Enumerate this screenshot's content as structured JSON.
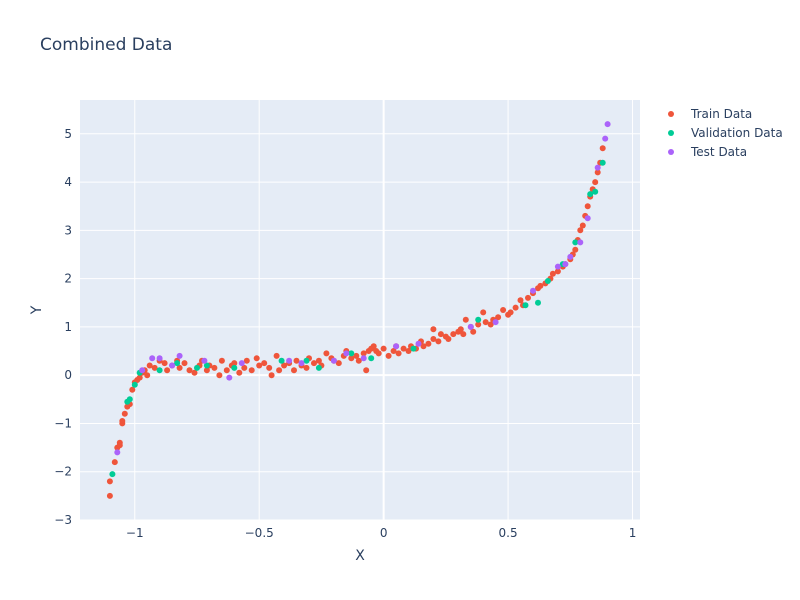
{
  "chart_data": {
    "type": "scatter",
    "title": "Combined Data",
    "xlabel": "X",
    "ylabel": "Y",
    "xlim": [
      -1.22,
      1.03
    ],
    "ylim": [
      -3.0,
      5.7
    ],
    "x_ticks": [
      -1,
      -0.5,
      0,
      0.5,
      1
    ],
    "x_tick_labels": [
      "−1",
      "−0.5",
      "0",
      "0.5",
      "1"
    ],
    "y_ticks": [
      -3,
      -2,
      -1,
      0,
      1,
      2,
      3,
      4,
      5
    ],
    "y_tick_labels": [
      "−3",
      "−2",
      "−1",
      "0",
      "1",
      "2",
      "3",
      "4",
      "5"
    ],
    "grid": true,
    "legend_position": "top-right",
    "background_color": "#e5ecf6",
    "series": [
      {
        "name": "Train Data",
        "color": "#ef553b",
        "points": [
          [
            -1.1,
            -2.5
          ],
          [
            -1.1,
            -2.2
          ],
          [
            -1.08,
            -1.8
          ],
          [
            -1.07,
            -1.5
          ],
          [
            -1.06,
            -1.4
          ],
          [
            -1.06,
            -1.45
          ],
          [
            -1.05,
            -1.0
          ],
          [
            -1.05,
            -0.95
          ],
          [
            -1.04,
            -0.8
          ],
          [
            -1.03,
            -0.65
          ],
          [
            -1.02,
            -0.6
          ],
          [
            -1.01,
            -0.3
          ],
          [
            -1.0,
            -0.15
          ],
          [
            -0.99,
            -0.1
          ],
          [
            -0.98,
            -0.05
          ],
          [
            -0.97,
            0.05
          ],
          [
            -0.96,
            0.1
          ],
          [
            -0.95,
            0.0
          ],
          [
            -0.94,
            0.2
          ],
          [
            -0.92,
            0.15
          ],
          [
            -0.9,
            0.3
          ],
          [
            -0.88,
            0.25
          ],
          [
            -0.87,
            0.1
          ],
          [
            -0.85,
            0.2
          ],
          [
            -0.83,
            0.3
          ],
          [
            -0.82,
            0.15
          ],
          [
            -0.8,
            0.25
          ],
          [
            -0.78,
            0.1
          ],
          [
            -0.76,
            0.05
          ],
          [
            -0.74,
            0.2
          ],
          [
            -0.73,
            0.3
          ],
          [
            -0.71,
            0.1
          ],
          [
            -0.7,
            0.2
          ],
          [
            -0.68,
            0.15
          ],
          [
            -0.66,
            0.0
          ],
          [
            -0.65,
            0.3
          ],
          [
            -0.63,
            0.1
          ],
          [
            -0.61,
            0.2
          ],
          [
            -0.6,
            0.25
          ],
          [
            -0.58,
            0.05
          ],
          [
            -0.56,
            0.15
          ],
          [
            -0.55,
            0.3
          ],
          [
            -0.53,
            0.1
          ],
          [
            -0.51,
            0.35
          ],
          [
            -0.5,
            0.2
          ],
          [
            -0.48,
            0.25
          ],
          [
            -0.46,
            0.15
          ],
          [
            -0.45,
            0.0
          ],
          [
            -0.43,
            0.4
          ],
          [
            -0.42,
            0.1
          ],
          [
            -0.4,
            0.2
          ],
          [
            -0.38,
            0.25
          ],
          [
            -0.36,
            0.1
          ],
          [
            -0.35,
            0.3
          ],
          [
            -0.33,
            0.2
          ],
          [
            -0.31,
            0.15
          ],
          [
            -0.3,
            0.35
          ],
          [
            -0.28,
            0.25
          ],
          [
            -0.26,
            0.3
          ],
          [
            -0.25,
            0.2
          ],
          [
            -0.23,
            0.45
          ],
          [
            -0.21,
            0.35
          ],
          [
            -0.2,
            0.3
          ],
          [
            -0.18,
            0.25
          ],
          [
            -0.16,
            0.4
          ],
          [
            -0.15,
            0.5
          ],
          [
            -0.13,
            0.35
          ],
          [
            -0.11,
            0.4
          ],
          [
            -0.1,
            0.3
          ],
          [
            -0.08,
            0.45
          ],
          [
            -0.07,
            0.1
          ],
          [
            -0.06,
            0.5
          ],
          [
            -0.05,
            0.55
          ],
          [
            -0.04,
            0.6
          ],
          [
            -0.03,
            0.5
          ],
          [
            -0.02,
            0.45
          ],
          [
            0.0,
            0.55
          ],
          [
            0.02,
            0.4
          ],
          [
            0.04,
            0.5
          ],
          [
            0.05,
            0.6
          ],
          [
            0.06,
            0.45
          ],
          [
            0.08,
            0.55
          ],
          [
            0.1,
            0.5
          ],
          [
            0.11,
            0.6
          ],
          [
            0.13,
            0.55
          ],
          [
            0.15,
            0.7
          ],
          [
            0.16,
            0.6
          ],
          [
            0.18,
            0.65
          ],
          [
            0.2,
            0.75
          ],
          [
            0.2,
            0.95
          ],
          [
            0.22,
            0.7
          ],
          [
            0.23,
            0.85
          ],
          [
            0.25,
            0.8
          ],
          [
            0.26,
            0.75
          ],
          [
            0.28,
            0.85
          ],
          [
            0.3,
            0.9
          ],
          [
            0.31,
            0.95
          ],
          [
            0.32,
            0.85
          ],
          [
            0.33,
            1.15
          ],
          [
            0.35,
            1.0
          ],
          [
            0.36,
            0.9
          ],
          [
            0.38,
            1.05
          ],
          [
            0.4,
            1.3
          ],
          [
            0.41,
            1.1
          ],
          [
            0.43,
            1.05
          ],
          [
            0.44,
            1.15
          ],
          [
            0.46,
            1.2
          ],
          [
            0.48,
            1.35
          ],
          [
            0.5,
            1.25
          ],
          [
            0.51,
            1.3
          ],
          [
            0.53,
            1.4
          ],
          [
            0.55,
            1.55
          ],
          [
            0.56,
            1.45
          ],
          [
            0.58,
            1.6
          ],
          [
            0.6,
            1.7
          ],
          [
            0.62,
            1.8
          ],
          [
            0.63,
            1.85
          ],
          [
            0.65,
            1.9
          ],
          [
            0.67,
            2.0
          ],
          [
            0.68,
            2.1
          ],
          [
            0.7,
            2.15
          ],
          [
            0.72,
            2.25
          ],
          [
            0.73,
            2.3
          ],
          [
            0.75,
            2.4
          ],
          [
            0.76,
            2.5
          ],
          [
            0.77,
            2.6
          ],
          [
            0.78,
            2.8
          ],
          [
            0.79,
            3.0
          ],
          [
            0.8,
            3.1
          ],
          [
            0.81,
            3.3
          ],
          [
            0.82,
            3.5
          ],
          [
            0.83,
            3.7
          ],
          [
            0.84,
            3.85
          ],
          [
            0.85,
            4.0
          ],
          [
            0.86,
            4.2
          ],
          [
            0.87,
            4.4
          ],
          [
            0.88,
            4.7
          ]
        ]
      },
      {
        "name": "Validation Data",
        "color": "#00cc96",
        "points": [
          [
            -1.09,
            -2.05
          ],
          [
            -1.03,
            -0.55
          ],
          [
            -1.02,
            -0.5
          ],
          [
            -1.0,
            -0.2
          ],
          [
            -0.98,
            0.05
          ],
          [
            -0.9,
            0.1
          ],
          [
            -0.83,
            0.25
          ],
          [
            -0.75,
            0.15
          ],
          [
            -0.71,
            0.2
          ],
          [
            -0.6,
            0.15
          ],
          [
            -0.41,
            0.3
          ],
          [
            -0.31,
            0.3
          ],
          [
            -0.26,
            0.15
          ],
          [
            -0.13,
            0.45
          ],
          [
            -0.05,
            0.35
          ],
          [
            0.12,
            0.55
          ],
          [
            0.38,
            1.15
          ],
          [
            0.57,
            1.45
          ],
          [
            0.62,
            1.5
          ],
          [
            0.66,
            1.95
          ],
          [
            0.72,
            2.3
          ],
          [
            0.77,
            2.75
          ],
          [
            0.83,
            3.75
          ],
          [
            0.85,
            3.8
          ],
          [
            0.88,
            4.4
          ]
        ]
      },
      {
        "name": "Test Data",
        "color": "#ab63fa",
        "points": [
          [
            -1.07,
            -1.6
          ],
          [
            -0.97,
            0.1
          ],
          [
            -0.93,
            0.35
          ],
          [
            -0.9,
            0.35
          ],
          [
            -0.85,
            0.2
          ],
          [
            -0.82,
            0.4
          ],
          [
            -0.72,
            0.3
          ],
          [
            -0.62,
            -0.05
          ],
          [
            -0.57,
            0.25
          ],
          [
            -0.38,
            0.3
          ],
          [
            -0.33,
            0.25
          ],
          [
            -0.2,
            0.3
          ],
          [
            -0.15,
            0.45
          ],
          [
            -0.08,
            0.35
          ],
          [
            0.05,
            0.6
          ],
          [
            0.14,
            0.65
          ],
          [
            0.35,
            1.0
          ],
          [
            0.45,
            1.1
          ],
          [
            0.6,
            1.75
          ],
          [
            0.7,
            2.25
          ],
          [
            0.73,
            2.3
          ],
          [
            0.75,
            2.45
          ],
          [
            0.79,
            2.75
          ],
          [
            0.82,
            3.25
          ],
          [
            0.86,
            4.3
          ],
          [
            0.89,
            4.9
          ],
          [
            0.9,
            5.2
          ]
        ]
      }
    ]
  }
}
